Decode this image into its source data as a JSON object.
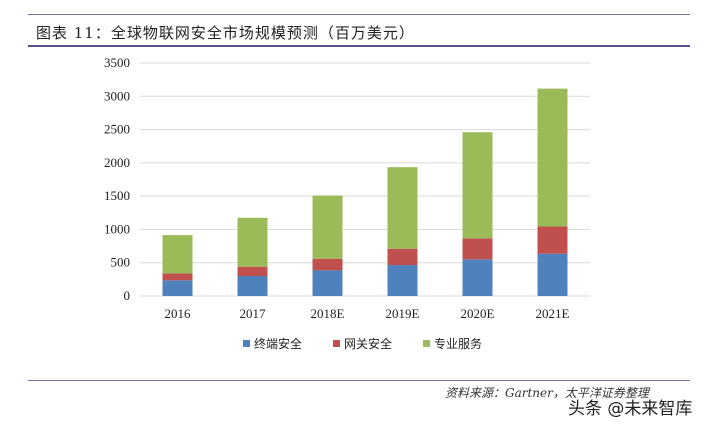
{
  "header": {
    "title": "图表 11：全球物联网安全市场规模预测（百万美元）"
  },
  "footer": {
    "source": "资料来源：Gartner，太平洋证券整理",
    "watermark": "头条 @未来智库"
  },
  "chart_data": {
    "type": "bar",
    "stacked": true,
    "title": "",
    "xlabel": "",
    "ylabel": "",
    "categories": [
      "2016",
      "2017",
      "2018E",
      "2019E",
      "2020E",
      "2021E"
    ],
    "ylim": [
      0,
      3500
    ],
    "yticks": [
      0,
      500,
      1000,
      1500,
      2000,
      2500,
      3000,
      3500
    ],
    "grid": true,
    "legend_position": "bottom",
    "series": [
      {
        "name": "终端安全",
        "color": "#4f81bd",
        "values": [
          235,
          300,
          385,
          465,
          550,
          635
        ]
      },
      {
        "name": "网关安全",
        "color": "#c0504d",
        "values": [
          105,
          140,
          175,
          245,
          315,
          410
        ]
      },
      {
        "name": "专业服务",
        "color": "#9bbb59",
        "values": [
          575,
          735,
          950,
          1225,
          1595,
          2070
        ]
      }
    ]
  }
}
